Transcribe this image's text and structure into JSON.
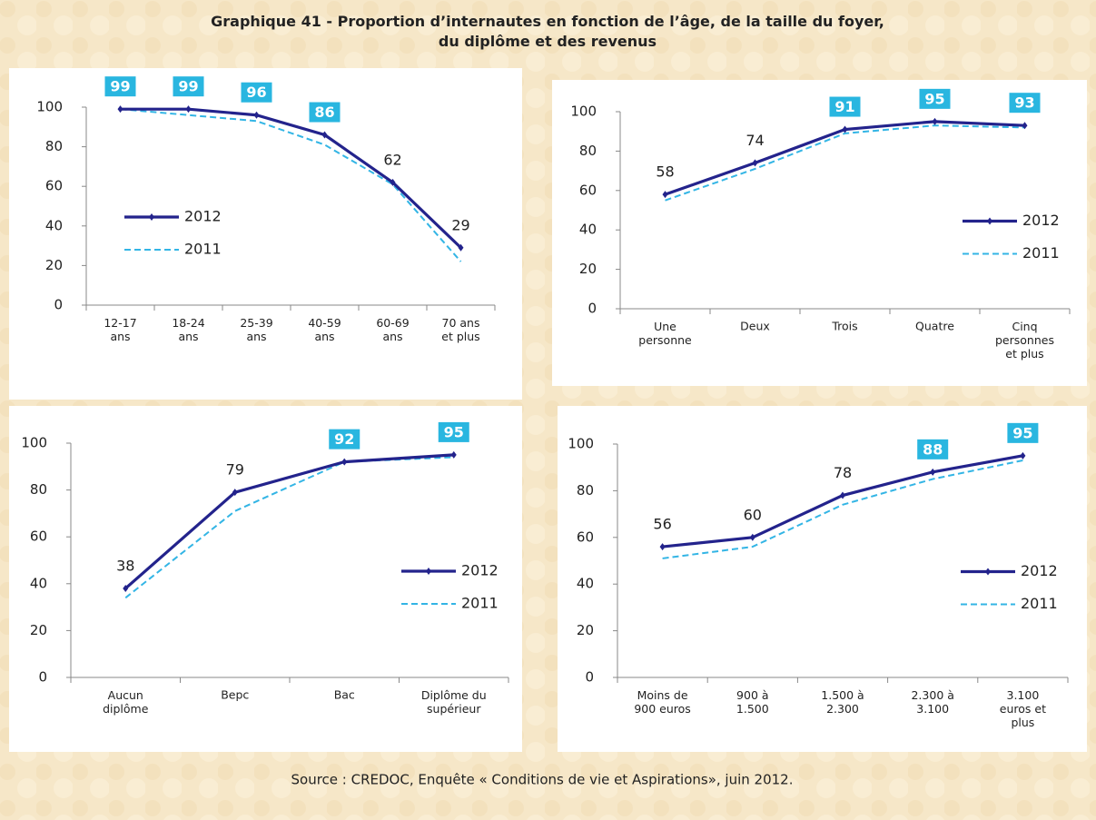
{
  "title": "Graphique 41 - Proportion d’internautes en fonction de l’âge, de la taille du foyer,\ndu diplôme et des revenus",
  "source": "Source : CREDOC, Enquête « Conditions de vie et Aspirations», juin 2012.",
  "chart_data": [
    {
      "type": "line",
      "categories": [
        "12-17\nans",
        "18-24\nans",
        "25-39\nans",
        "40-59\nans",
        "60-69\nans",
        "70 ans\net plus"
      ],
      "series": [
        {
          "name": "2012",
          "color": "#23238c",
          "values": [
            99,
            99,
            96,
            86,
            62,
            29
          ],
          "boxed_labels": [
            true,
            true,
            true,
            true,
            false,
            false
          ]
        },
        {
          "name": "2011",
          "color": "#33b5e5",
          "values": [
            99,
            96,
            93,
            81,
            61,
            22
          ]
        }
      ],
      "ylim": [
        0,
        100
      ],
      "yticks": [
        0,
        20,
        40,
        60,
        80,
        100
      ],
      "legend": "center left"
    },
    {
      "type": "line",
      "categories": [
        "Une\npersonne",
        "Deux",
        "Trois",
        "Quatre",
        "Cinq\npersonnes\net plus"
      ],
      "series": [
        {
          "name": "2012",
          "color": "#23238c",
          "values": [
            58,
            74,
            91,
            95,
            93
          ],
          "boxed_labels": [
            false,
            false,
            true,
            true,
            true
          ]
        },
        {
          "name": "2011",
          "color": "#33b5e5",
          "values": [
            55,
            71,
            89,
            93,
            92
          ]
        }
      ],
      "ylim": [
        0,
        100
      ],
      "yticks": [
        0,
        20,
        40,
        60,
        80,
        100
      ],
      "legend": "center right"
    },
    {
      "type": "line",
      "categories": [
        "Aucun\ndiplôme",
        "Bepc",
        "Bac",
        "Diplôme du\nsupérieur"
      ],
      "series": [
        {
          "name": "2012",
          "color": "#23238c",
          "values": [
            38,
            79,
            92,
            95
          ],
          "boxed_labels": [
            false,
            false,
            true,
            true
          ]
        },
        {
          "name": "2011",
          "color": "#33b5e5",
          "values": [
            34,
            71,
            92,
            94
          ]
        }
      ],
      "ylim": [
        0,
        100
      ],
      "yticks": [
        0,
        20,
        40,
        60,
        80,
        100
      ],
      "legend": "center right"
    },
    {
      "type": "line",
      "categories": [
        "Moins de\n900 euros",
        "900 à\n1.500",
        "1.500 à\n2.300",
        "2.300 à\n3.100",
        "3.100\neuros et\nplus"
      ],
      "series": [
        {
          "name": "2012",
          "color": "#23238c",
          "values": [
            56,
            60,
            78,
            88,
            95
          ],
          "boxed_labels": [
            false,
            false,
            false,
            true,
            true
          ]
        },
        {
          "name": "2011",
          "color": "#33b5e5",
          "values": [
            51,
            56,
            74,
            85,
            93
          ]
        }
      ],
      "ylim": [
        0,
        100
      ],
      "yticks": [
        0,
        20,
        40,
        60,
        80,
        100
      ],
      "legend": "center right"
    }
  ]
}
